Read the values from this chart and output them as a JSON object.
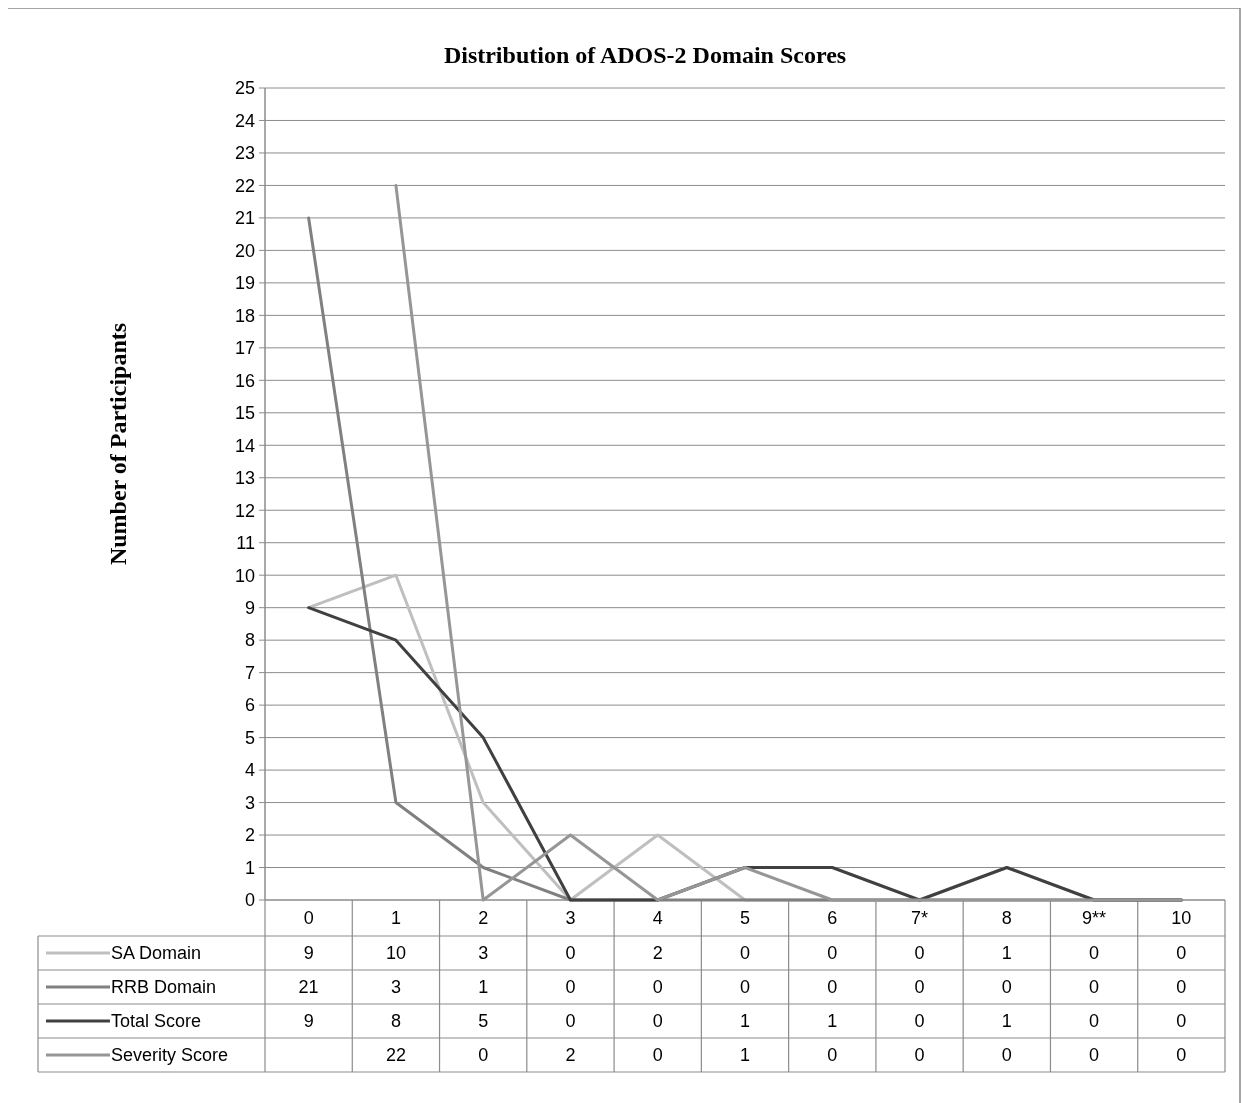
{
  "chart_data": {
    "type": "line",
    "title": "Distribution of ADOS-2 Domain Scores",
    "ylabel": "Number of Participants",
    "categories": [
      "0",
      "1",
      "2",
      "3",
      "4",
      "5",
      "6",
      "7*",
      "8",
      "9**",
      "10"
    ],
    "series": [
      {
        "name": "SA Domain",
        "color": "#bfbfbf",
        "values": [
          9,
          10,
          3,
          0,
          2,
          0,
          0,
          0,
          1,
          0,
          0
        ]
      },
      {
        "name": "RRB Domain",
        "color": "#808080",
        "values": [
          21,
          3,
          1,
          0,
          0,
          0,
          0,
          0,
          0,
          0,
          0
        ]
      },
      {
        "name": "Total Score",
        "color": "#404040",
        "values": [
          9,
          8,
          5,
          0,
          0,
          1,
          1,
          0,
          1,
          0,
          0
        ]
      },
      {
        "name": "Severity Score",
        "color": "#969696",
        "values": [
          null,
          22,
          0,
          2,
          0,
          1,
          0,
          0,
          0,
          0,
          0
        ]
      }
    ],
    "ylim": [
      0,
      25
    ],
    "yticks": [
      0,
      1,
      2,
      3,
      4,
      5,
      6,
      7,
      8,
      9,
      10,
      11,
      12,
      13,
      14,
      15,
      16,
      17,
      18,
      19,
      20,
      21,
      22,
      23,
      24,
      25
    ],
    "grid": "y",
    "legend": "bottom",
    "data_labels": true,
    "marker": "none",
    "line_style": "solid"
  }
}
